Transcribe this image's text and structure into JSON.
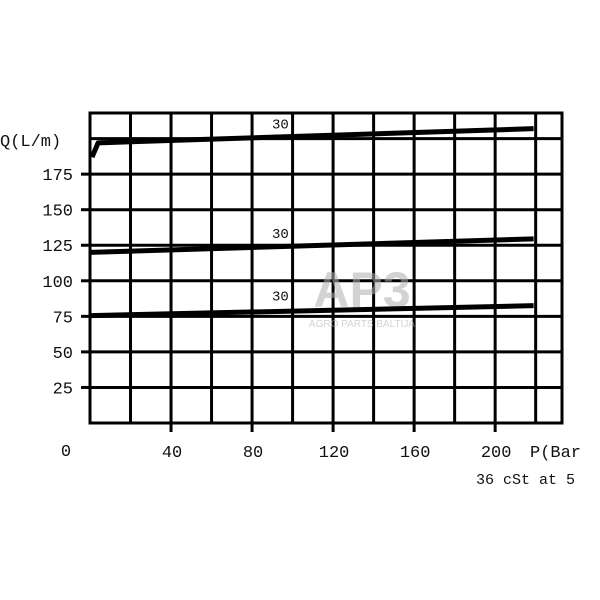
{
  "chart_data": {
    "type": "line",
    "title": "",
    "ylabel": "Q(L/m)",
    "xlabel": "P(Bar",
    "footnote": "36 cSt at 5",
    "origin_label": "0",
    "xlim": [
      0,
      233
    ],
    "ylim": [
      0,
      218
    ],
    "x_ticks": [
      40,
      80,
      120,
      160,
      200
    ],
    "y_ticks": [
      25,
      50,
      75,
      100,
      125,
      150,
      175
    ],
    "x_grid_step": 20,
    "y_grid_step": 25,
    "grid": true,
    "line_color": "#000000",
    "series": [
      {
        "label": "30",
        "label_at": [
          94,
          207
        ],
        "points": [
          [
            1,
            187
          ],
          [
            4,
            197
          ],
          [
            219,
            207
          ]
        ]
      },
      {
        "label": "30",
        "label_at": [
          94,
          130
        ],
        "points": [
          [
            0,
            120
          ],
          [
            219,
            129.5
          ]
        ]
      },
      {
        "label": "30",
        "label_at": [
          94,
          86
        ],
        "points": [
          [
            0,
            75.5
          ],
          [
            219,
            82.5
          ]
        ]
      }
    ]
  },
  "watermark": {
    "logo": "AP3",
    "text": "AGRO PARTS BALTIJA",
    "color": "#b0b0b0"
  }
}
